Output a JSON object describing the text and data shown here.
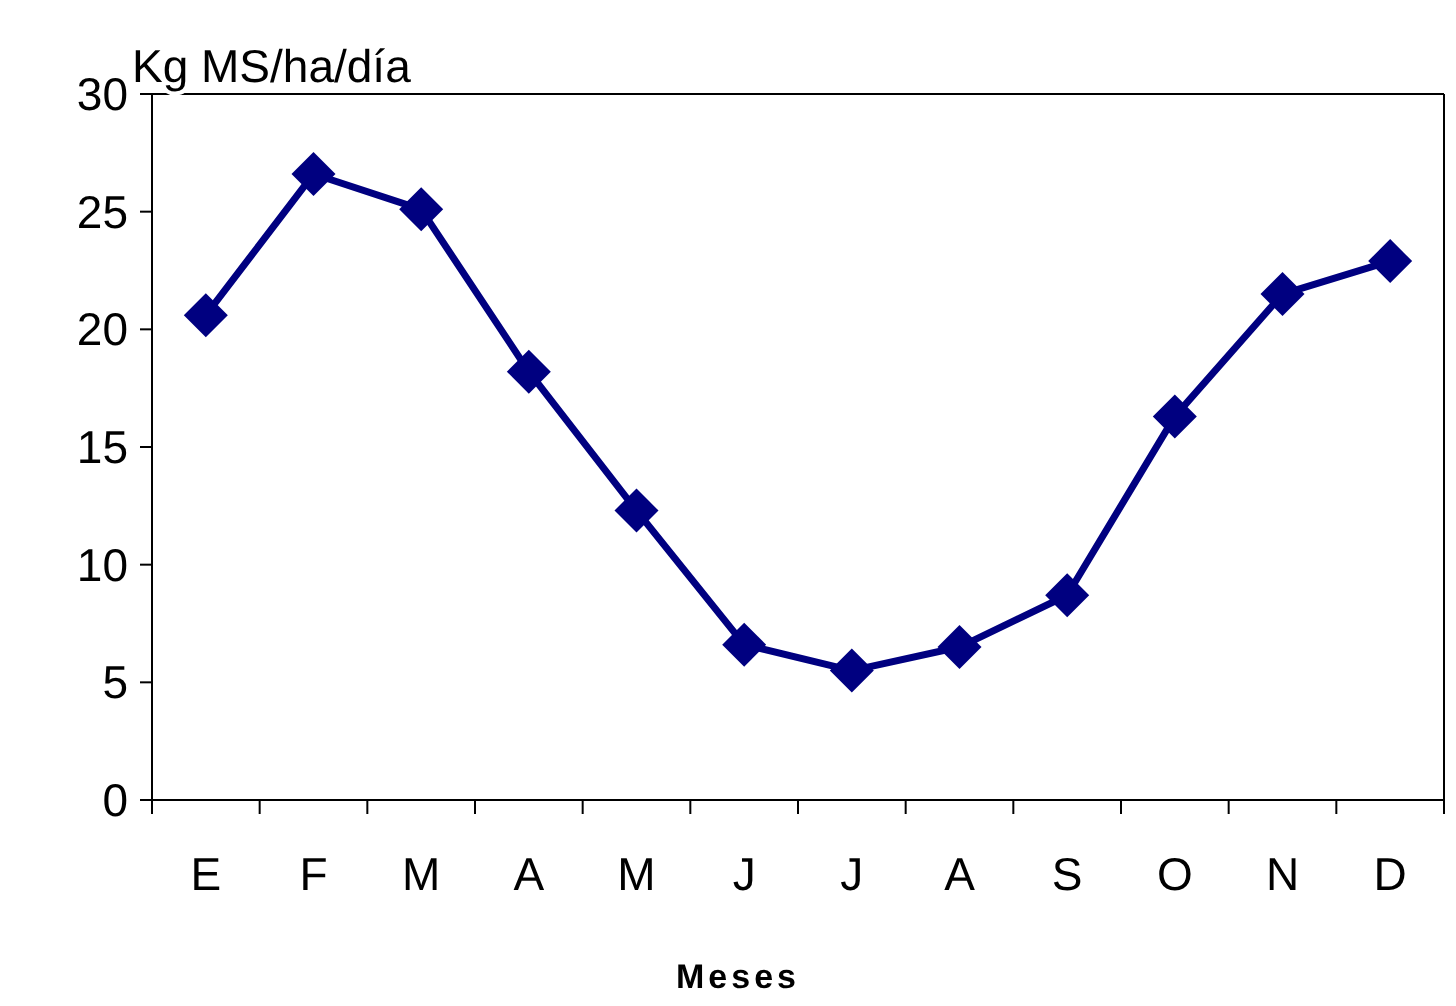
{
  "chart_data": {
    "type": "line",
    "ylabel": "Kg MS/ha/día",
    "xlabel": "Meses",
    "categories": [
      "E",
      "F",
      "M",
      "A",
      "M",
      "J",
      "J",
      "A",
      "S",
      "O",
      "N",
      "D"
    ],
    "series": [
      {
        "color": "#000080",
        "values": [
          20.6,
          26.6,
          25.1,
          18.2,
          12.3,
          6.6,
          5.5,
          6.5,
          8.7,
          16.3,
          21.5,
          22.9
        ]
      }
    ],
    "ylim": [
      0,
      30
    ],
    "yticks": [
      0,
      5,
      10,
      15,
      20,
      25,
      30
    ],
    "marker": "diamond",
    "line_style": "solid"
  }
}
